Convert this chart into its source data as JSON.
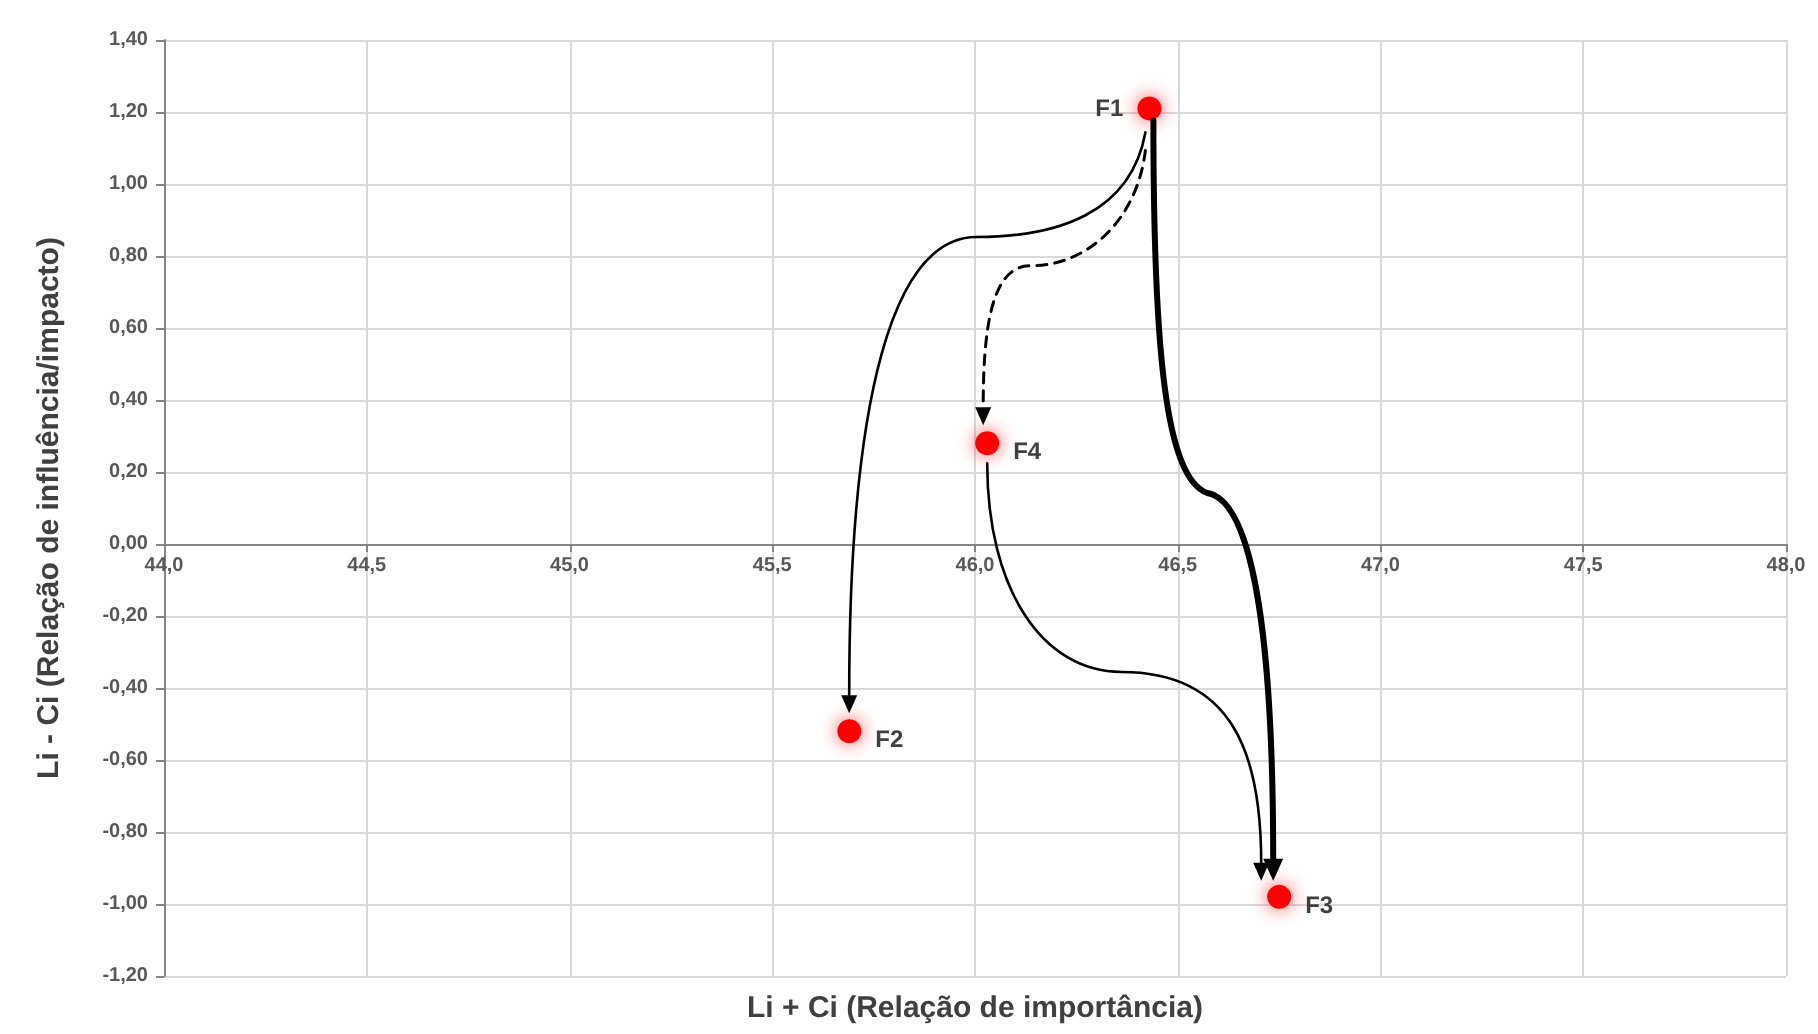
{
  "chart_data": {
    "type": "scatter",
    "xlabel": "Li + Ci (Relação de importância)",
    "ylabel": "Li - Ci (Relação de influência/impacto)",
    "x": [
      46.43,
      45.69,
      46.75,
      46.03
    ],
    "series": [
      {
        "color": "#ff0000",
        "values": [
          1.21,
          -0.52,
          -0.98,
          0.28
        ]
      }
    ],
    "xlim": [
      44,
      48
    ],
    "xticks": [
      {
        "value": 44,
        "label": "44,0"
      },
      {
        "value": 44.5,
        "label": "44,5"
      },
      {
        "value": 45,
        "label": "45,0"
      },
      {
        "value": 45.5,
        "label": "45,5"
      },
      {
        "value": 46,
        "label": "46,0"
      },
      {
        "value": 46.5,
        "label": "46,5"
      },
      {
        "value": 47,
        "label": "47,0"
      },
      {
        "value": 47.5,
        "label": "47,5"
      },
      {
        "value": 48,
        "label": "48,0"
      }
    ],
    "ylim": [
      -1.2,
      1.4
    ],
    "yticks": [
      {
        "value": -1.2,
        "label": "-1,20"
      },
      {
        "value": -1,
        "label": "-1,00"
      },
      {
        "value": -0.8,
        "label": "-0,80"
      },
      {
        "value": -0.6,
        "label": "-0,60"
      },
      {
        "value": -0.4,
        "label": "-0,40"
      },
      {
        "value": -0.2,
        "label": "-0,20"
      },
      {
        "value": 0,
        "label": "0,00"
      },
      {
        "value": 0.2,
        "label": "0,20"
      },
      {
        "value": 0.4,
        "label": "0,40"
      },
      {
        "value": 0.6,
        "label": "0,60"
      },
      {
        "value": 0.8,
        "label": "0,80"
      },
      {
        "value": 1,
        "label": "1,00"
      },
      {
        "value": 1.2,
        "label": "1,20"
      },
      {
        "value": 1.4,
        "label": "1,40"
      }
    ],
    "grid": true,
    "marker": "circle",
    "annotations": [
      {
        "text": "F1",
        "x": 46.43,
        "y": 1.21
      },
      {
        "text": "F2",
        "x": 45.69,
        "y": -0.52
      },
      {
        "text": "F3",
        "x": 46.75,
        "y": -0.98
      },
      {
        "text": "F4",
        "x": 46.03,
        "y": 0.28
      }
    ]
  }
}
